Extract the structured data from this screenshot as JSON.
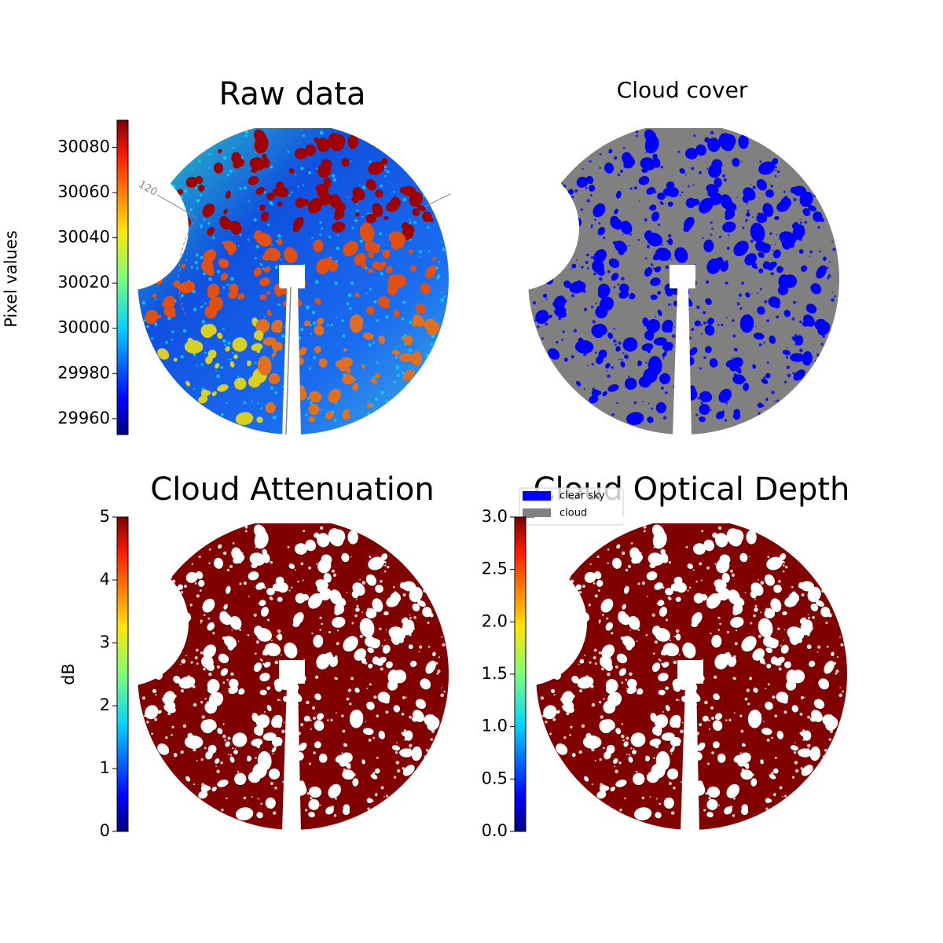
{
  "chart_data": [
    {
      "type": "image",
      "title": "Raw data",
      "annotation": "120",
      "colorbar": {
        "label": "Pixel values",
        "ylim": [
          29953,
          30092
        ],
        "yticks": [
          29960,
          29980,
          30000,
          30020,
          30040,
          30060,
          30080
        ]
      }
    },
    {
      "type": "image",
      "title": "Cloud cover",
      "series": [
        {
          "name": "clear sky",
          "color": "#0000ff"
        },
        {
          "name": "cloud",
          "color": "#808080"
        }
      ]
    },
    {
      "type": "image",
      "title": "Cloud Attenuation",
      "colorbar": {
        "label": "dB",
        "ylim": [
          0,
          5
        ],
        "yticks": [
          0,
          1,
          2,
          3,
          4,
          5
        ]
      }
    },
    {
      "type": "image",
      "title": "Cloud Optical Depth",
      "colorbar": {
        "ylim": [
          0,
          3
        ],
        "yticks": [
          {
            "value": 0,
            "label": "0.0"
          },
          {
            "value": 0.5,
            "label": "0.5"
          },
          {
            "value": 1,
            "label": "1.0"
          },
          {
            "value": 1.5,
            "label": "1.5"
          },
          {
            "value": 2,
            "label": "2.0"
          },
          {
            "value": 2.5,
            "label": "2.5"
          },
          {
            "value": 3,
            "label": "3.0"
          }
        ]
      }
    }
  ]
}
